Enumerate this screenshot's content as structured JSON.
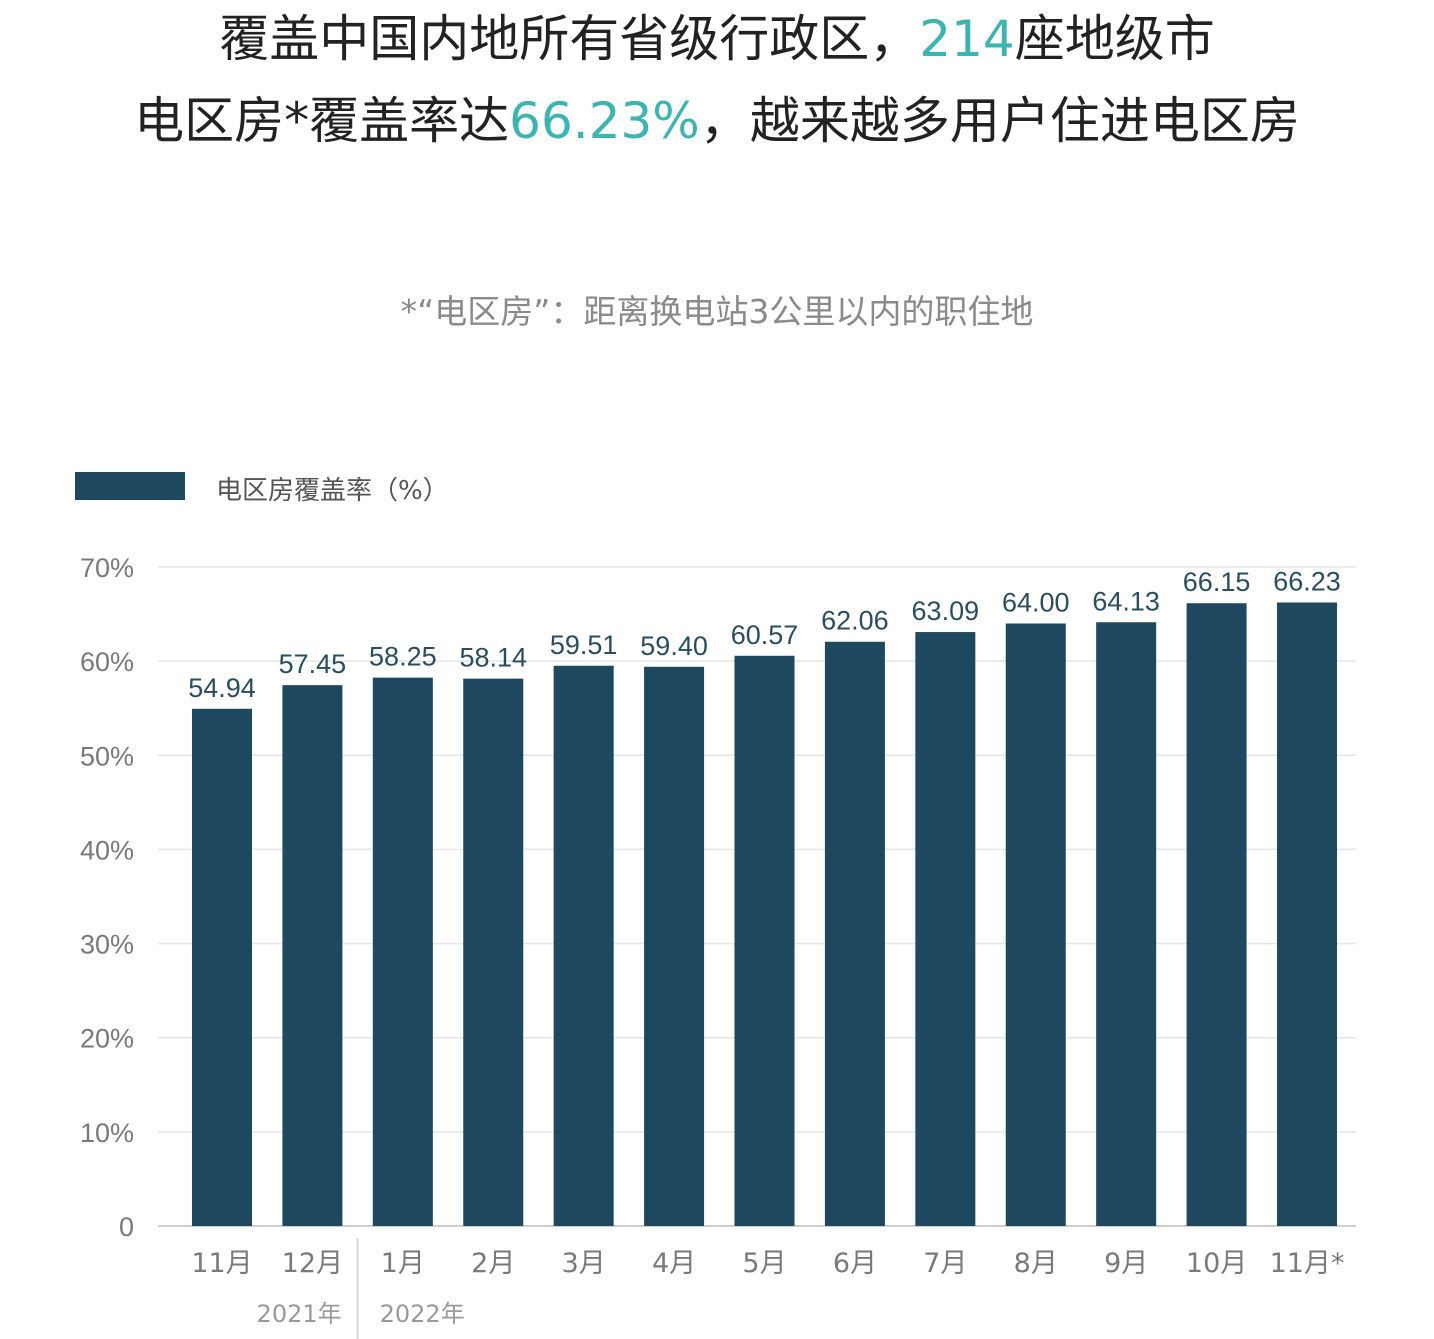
{
  "headline": {
    "line1_part1": "覆盖中国内地所有省级行政区，",
    "line1_accent": "214",
    "line1_part2": "座地级市",
    "line2_part1": "电区房*覆盖率达",
    "line2_accent": "66.23%",
    "line2_part2": "，越来越多用户住进电区房"
  },
  "footnote": "*“电区房”：距离换电站3公里以内的职住地",
  "colors": {
    "bar": "#1d4860",
    "accent": "#3cb4b0",
    "grid": "#e6e6e6"
  },
  "chart_data": {
    "type": "bar",
    "legend": "电区房覆盖率（%）",
    "legend_position": "top-left",
    "categories": [
      "11月",
      "12月",
      "1月",
      "2月",
      "3月",
      "4月",
      "5月",
      "6月",
      "7月",
      "8月",
      "9月",
      "10月",
      "11月*"
    ],
    "values": [
      54.94,
      57.45,
      58.25,
      58.14,
      59.51,
      59.4,
      60.57,
      62.06,
      63.09,
      64.0,
      64.13,
      66.15,
      66.23
    ],
    "value_labels": [
      "54.94",
      "57.45",
      "58.25",
      "58.14",
      "59.51",
      "59.40",
      "60.57",
      "62.06",
      "63.09",
      "64.00",
      "64.13",
      "66.15",
      "66.23"
    ],
    "year_groups": [
      {
        "label": "2021年",
        "categories": [
          "11月",
          "12月"
        ]
      },
      {
        "label": "2022年",
        "categories": [
          "1月",
          "2月",
          "3月",
          "4月",
          "5月",
          "6月",
          "7月",
          "8月",
          "9月",
          "10月",
          "11月*"
        ]
      }
    ],
    "y_ticks": [
      0,
      10,
      20,
      30,
      40,
      50,
      60,
      70
    ],
    "y_tick_labels": [
      "0",
      "10%",
      "20%",
      "30%",
      "40%",
      "50%",
      "60%",
      "70%"
    ],
    "ylim": [
      0,
      70
    ],
    "grid": true
  }
}
